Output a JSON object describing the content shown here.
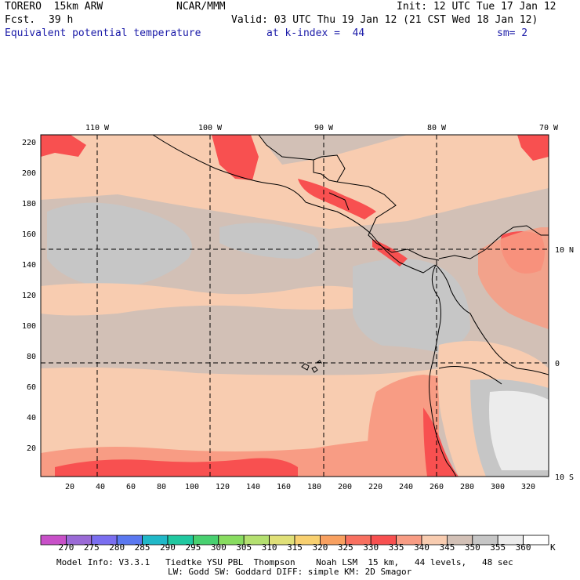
{
  "header": {
    "model": "TORERO  15km ARW",
    "center": "NCAR/MMM",
    "init": "Init: 12 UTC Tue 17 Jan 12",
    "fcst_label": "Fcst.",
    "fcst_value": "39 h",
    "valid": "Valid: 03 UTC Thu 19 Jan 12 (21 CST Wed 18 Jan 12)",
    "field": "Equivalent potential temperature",
    "level": "at k-index =  44",
    "smooth": "sm= 2"
  },
  "map": {
    "top_axis_labels": [
      "110 W",
      "100 W",
      "90 W",
      "80 W",
      "70 W"
    ],
    "right_axis_labels": [
      "10 N",
      "0",
      "10 S"
    ],
    "left_axis_labels": [
      "220",
      "200",
      "180",
      "160",
      "140",
      "120",
      "100",
      "80",
      "60",
      "40",
      "20"
    ],
    "bottom_axis_labels": [
      "20",
      "40",
      "60",
      "80",
      "100",
      "120",
      "140",
      "160",
      "180",
      "200",
      "220",
      "240",
      "260",
      "280",
      "300",
      "320"
    ]
  },
  "legend": {
    "values": [
      "270",
      "275",
      "280",
      "285",
      "290",
      "295",
      "300",
      "305",
      "310",
      "315",
      "320",
      "325",
      "330",
      "335",
      "340",
      "345",
      "350",
      "355",
      "360"
    ],
    "unit": "K",
    "colors": [
      "#c850c8",
      "#9a6ad6",
      "#7a6ef0",
      "#5a78f0",
      "#20b8c8",
      "#20c8a0",
      "#48d070",
      "#88dc60",
      "#b4e070",
      "#e0e078",
      "#f8d070",
      "#f8a060",
      "#f87060",
      "#f85050",
      "#f89c84",
      "#f8ccb0",
      "#d2c0b6",
      "#c6c6c6",
      "#ececec",
      "#ffffff"
    ]
  },
  "footer": {
    "line1": "Model Info: V3.3.1   Tiedtke YSU PBL  Thompson    Noah LSM  15 km,   44 levels,   48 sec",
    "line2": "LW: Godd SW: Goddard DIFF: simple KM: 2D Smagor"
  }
}
